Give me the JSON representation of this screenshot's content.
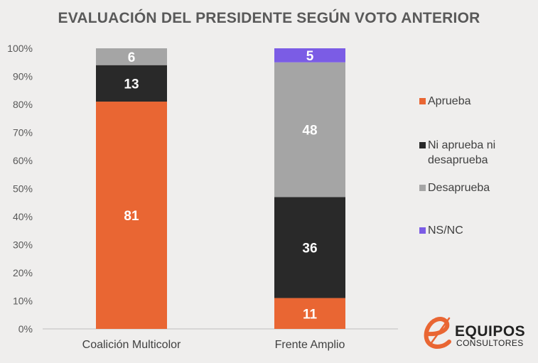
{
  "chart_data": {
    "type": "bar",
    "stacked": true,
    "title": "EVALUACIÓN DEL PRESIDENTE SEGÚN VOTO ANTERIOR",
    "categories": [
      "Coalición Multicolor",
      "Frente Amplio"
    ],
    "series": [
      {
        "name": "Aprueba",
        "color": "#e96633",
        "values": [
          81,
          11
        ]
      },
      {
        "name": "Ni aprueba ni desaprueba",
        "color": "#292929",
        "values": [
          13,
          36
        ]
      },
      {
        "name": "Desaprueba",
        "color": "#a5a5a5",
        "values": [
          6,
          48
        ]
      },
      {
        "name": "NS/NC",
        "color": "#7b5ce5",
        "values": [
          0,
          5
        ]
      }
    ],
    "y_ticks": [
      "0%",
      "10%",
      "20%",
      "30%",
      "40%",
      "50%",
      "60%",
      "70%",
      "80%",
      "90%",
      "100%"
    ],
    "ylim": [
      0,
      100
    ],
    "grid": false,
    "legend_position": "right"
  },
  "logo": {
    "main": "EQUIPOS",
    "sub": "CONSULTORES",
    "accent_color": "#e96633"
  }
}
